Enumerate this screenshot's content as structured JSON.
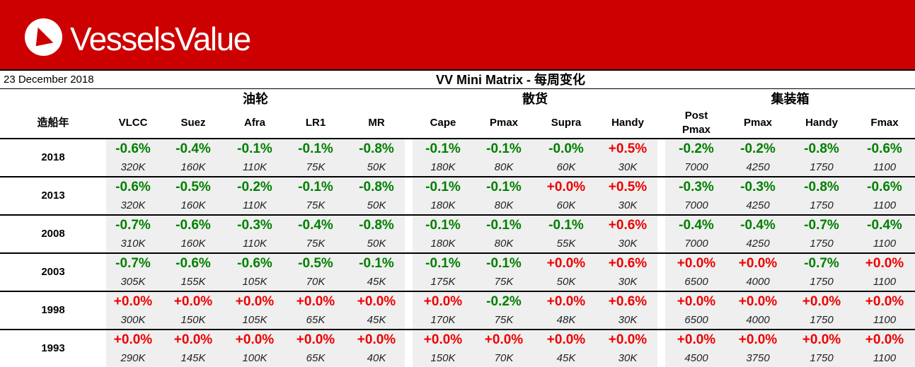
{
  "brand": {
    "name": "VesselsValue",
    "color": "#cc0000",
    "logo_icon": "vv-triangle-icon"
  },
  "header": {
    "date": "23 December 2018",
    "title": "VV Mini Matrix - 每周变化"
  },
  "table": {
    "year_header": "造船年",
    "groups": [
      {
        "label": "油轮",
        "columns": [
          "VLCC",
          "Suez",
          "Afra",
          "LR1",
          "MR"
        ]
      },
      {
        "label": "散货",
        "columns": [
          "Cape",
          "Pmax",
          "Supra",
          "Handy"
        ]
      },
      {
        "label": "集装箱",
        "columns": [
          "Post\nPmax",
          "Pmax",
          "Handy",
          "Fmax"
        ]
      }
    ],
    "rows": [
      {
        "year": "2018",
        "changes": [
          "-0.6%",
          "-0.4%",
          "-0.1%",
          "-0.1%",
          "-0.8%",
          "-0.1%",
          "-0.1%",
          "-0.0%",
          "+0.5%",
          "-0.2%",
          "-0.2%",
          "-0.8%",
          "-0.6%"
        ],
        "values": [
          "320K",
          "160K",
          "110K",
          "75K",
          "50K",
          "180K",
          "80K",
          "60K",
          "30K",
          "7000",
          "4250",
          "1750",
          "1100"
        ]
      },
      {
        "year": "2013",
        "changes": [
          "-0.6%",
          "-0.5%",
          "-0.2%",
          "-0.1%",
          "-0.8%",
          "-0.1%",
          "-0.1%",
          "+0.0%",
          "+0.5%",
          "-0.3%",
          "-0.3%",
          "-0.8%",
          "-0.6%"
        ],
        "values": [
          "320K",
          "160K",
          "110K",
          "75K",
          "50K",
          "180K",
          "80K",
          "60K",
          "30K",
          "7000",
          "4250",
          "1750",
          "1100"
        ]
      },
      {
        "year": "2008",
        "changes": [
          "-0.7%",
          "-0.6%",
          "-0.3%",
          "-0.4%",
          "-0.8%",
          "-0.1%",
          "-0.1%",
          "-0.1%",
          "+0.6%",
          "-0.4%",
          "-0.4%",
          "-0.7%",
          "-0.4%"
        ],
        "values": [
          "310K",
          "160K",
          "110K",
          "75K",
          "50K",
          "180K",
          "80K",
          "55K",
          "30K",
          "7000",
          "4250",
          "1750",
          "1100"
        ]
      },
      {
        "year": "2003",
        "changes": [
          "-0.7%",
          "-0.6%",
          "-0.6%",
          "-0.5%",
          "-0.1%",
          "-0.1%",
          "-0.1%",
          "+0.0%",
          "+0.6%",
          "+0.0%",
          "+0.0%",
          "-0.7%",
          "+0.0%"
        ],
        "values": [
          "305K",
          "155K",
          "105K",
          "70K",
          "45K",
          "175K",
          "75K",
          "50K",
          "30K",
          "6500",
          "4000",
          "1750",
          "1100"
        ]
      },
      {
        "year": "1998",
        "changes": [
          "+0.0%",
          "+0.0%",
          "+0.0%",
          "+0.0%",
          "+0.0%",
          "+0.0%",
          "-0.2%",
          "+0.0%",
          "+0.6%",
          "+0.0%",
          "+0.0%",
          "+0.0%",
          "+0.0%"
        ],
        "values": [
          "300K",
          "150K",
          "105K",
          "65K",
          "45K",
          "170K",
          "75K",
          "48K",
          "30K",
          "6500",
          "4000",
          "1750",
          "1100"
        ]
      },
      {
        "year": "1993",
        "changes": [
          "+0.0%",
          "+0.0%",
          "+0.0%",
          "+0.0%",
          "+0.0%",
          "+0.0%",
          "+0.0%",
          "+0.0%",
          "+0.0%",
          "+0.0%",
          "+0.0%",
          "+0.0%",
          "+0.0%"
        ],
        "values": [
          "290K",
          "145K",
          "100K",
          "65K",
          "40K",
          "150K",
          "70K",
          "45K",
          "30K",
          "4500",
          "3750",
          "1750",
          "1100"
        ]
      }
    ]
  },
  "colors": {
    "positive": "#ee0000",
    "negative": "#008000",
    "cell_shade": "#efefef"
  }
}
